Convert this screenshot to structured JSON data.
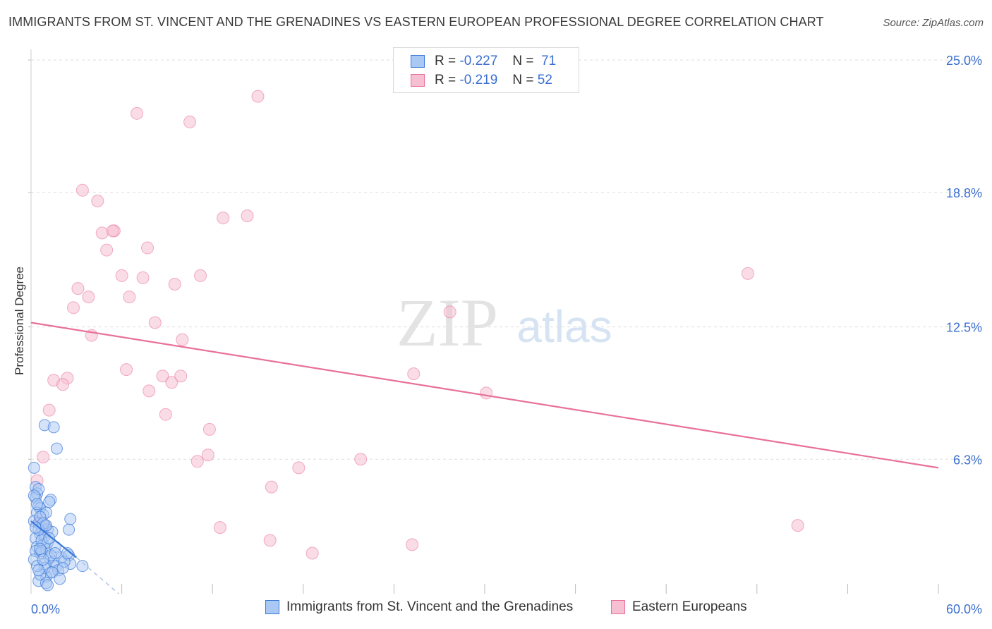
{
  "header": {
    "title": "IMMIGRANTS FROM ST. VINCENT AND THE GRENADINES VS EASTERN EUROPEAN PROFESSIONAL DEGREE CORRELATION CHART",
    "source": "Source: ZipAtlas.com"
  },
  "watermark": {
    "zip": "ZIP",
    "atlas": "atlas"
  },
  "stats": {
    "blue": {
      "r_label": "R =",
      "r_value": "-0.227",
      "n_label": "N =",
      "n_value": "71"
    },
    "pink": {
      "r_label": "R =",
      "r_value": "-0.219",
      "n_label": "N =",
      "n_value": "52"
    }
  },
  "colors": {
    "blue": "#3b78d8",
    "blue_fill": "#a9c8f3",
    "pink": "#e8709a",
    "pink_fill": "#f6bfd2",
    "accent_text": "#3b6fd1",
    "grid": "#dddddd"
  },
  "chart_data": {
    "type": "scatter",
    "title": "IMMIGRANTS FROM ST. VINCENT AND THE GRENADINES VS EASTERN EUROPEAN PROFESSIONAL DEGREE CORRELATION CHART",
    "xlabel": "",
    "ylabel": "Professional Degree",
    "xlim": [
      0,
      60
    ],
    "ylim": [
      0,
      25.5
    ],
    "x_tick_labels": [
      "0.0%",
      "60.0%"
    ],
    "y_ticks": [
      6.3,
      12.5,
      18.8,
      25.0
    ],
    "y_tick_labels": [
      "6.3%",
      "12.5%",
      "18.8%",
      "25.0%"
    ],
    "legend_position": "bottom-center",
    "series": [
      {
        "name": "Immigrants from St. Vincent and the Grenadines",
        "color": "#3b78d8",
        "r": -0.227,
        "n": 71,
        "trend": {
          "x": [
            0.0,
            3.0
          ],
          "y": [
            3.4,
            1.7
          ]
        },
        "trend_extension": {
          "x": [
            3.0,
            5.8
          ],
          "y": [
            1.7,
            0.0
          ]
        },
        "points": [
          [
            0.2,
            5.9
          ],
          [
            0.3,
            5.0
          ],
          [
            0.4,
            4.7
          ],
          [
            0.3,
            4.5
          ],
          [
            0.5,
            4.1
          ],
          [
            0.6,
            4.0
          ],
          [
            0.4,
            3.8
          ],
          [
            0.8,
            3.7
          ],
          [
            0.2,
            3.4
          ],
          [
            0.5,
            3.3
          ],
          [
            0.7,
            3.1
          ],
          [
            0.9,
            3.2
          ],
          [
            1.1,
            3.0
          ],
          [
            0.6,
            2.8
          ],
          [
            0.3,
            2.6
          ],
          [
            0.4,
            2.2
          ],
          [
            0.8,
            2.3
          ],
          [
            1.0,
            2.1
          ],
          [
            0.3,
            2.0
          ],
          [
            0.6,
            1.9
          ],
          [
            1.2,
            1.7
          ],
          [
            1.5,
            1.5
          ],
          [
            0.9,
            1.4
          ],
          [
            1.7,
            1.3
          ],
          [
            2.0,
            1.7
          ],
          [
            2.5,
            1.8
          ],
          [
            1.3,
            1.0
          ],
          [
            1.0,
            0.8
          ],
          [
            0.5,
            0.6
          ],
          [
            1.0,
            0.5
          ],
          [
            1.8,
            1.1
          ],
          [
            2.6,
            1.4
          ],
          [
            3.4,
            1.3
          ],
          [
            0.9,
            7.9
          ],
          [
            1.5,
            7.8
          ],
          [
            1.7,
            6.8
          ],
          [
            2.5,
            3.0
          ],
          [
            2.6,
            3.5
          ],
          [
            1.3,
            4.4
          ],
          [
            1.2,
            4.3
          ],
          [
            0.5,
            4.9
          ],
          [
            1.0,
            3.8
          ],
          [
            0.9,
            2.7
          ],
          [
            1.4,
            2.9
          ],
          [
            0.2,
            4.6
          ],
          [
            0.4,
            4.2
          ],
          [
            0.6,
            3.6
          ],
          [
            0.8,
            3.3
          ],
          [
            0.5,
            3.0
          ],
          [
            0.7,
            2.5
          ],
          [
            1.1,
            2.4
          ],
          [
            1.6,
            2.2
          ],
          [
            0.7,
            2.0
          ],
          [
            1.3,
            1.8
          ],
          [
            0.2,
            1.6
          ],
          [
            0.9,
            1.2
          ],
          [
            1.4,
            1.0
          ],
          [
            2.2,
            1.5
          ],
          [
            0.6,
            0.9
          ],
          [
            1.9,
            0.7
          ],
          [
            0.3,
            3.1
          ],
          [
            0.6,
            2.1
          ],
          [
            1.0,
            3.2
          ],
          [
            0.4,
            1.3
          ],
          [
            0.8,
            1.6
          ],
          [
            1.2,
            2.6
          ],
          [
            1.6,
            1.9
          ],
          [
            2.1,
            1.2
          ],
          [
            0.5,
            1.1
          ],
          [
            1.1,
            0.4
          ],
          [
            2.4,
            1.9
          ]
        ]
      },
      {
        "name": "Eastern Europeans",
        "color": "#e8709a",
        "r": -0.219,
        "n": 52,
        "trend": {
          "x": [
            0.0,
            60.0
          ],
          "y": [
            12.7,
            5.9
          ]
        },
        "points": [
          [
            15.0,
            23.3
          ],
          [
            7.0,
            22.5
          ],
          [
            10.5,
            22.1
          ],
          [
            3.4,
            18.9
          ],
          [
            4.4,
            18.4
          ],
          [
            12.7,
            17.6
          ],
          [
            14.3,
            17.7
          ],
          [
            4.7,
            16.9
          ],
          [
            5.5,
            17.0
          ],
          [
            5.4,
            17.0
          ],
          [
            5.0,
            16.1
          ],
          [
            7.7,
            16.2
          ],
          [
            6.0,
            14.9
          ],
          [
            7.4,
            14.8
          ],
          [
            11.2,
            14.9
          ],
          [
            9.5,
            14.5
          ],
          [
            3.1,
            14.3
          ],
          [
            3.8,
            13.9
          ],
          [
            6.5,
            13.9
          ],
          [
            2.8,
            13.4
          ],
          [
            8.2,
            12.7
          ],
          [
            27.7,
            13.2
          ],
          [
            47.4,
            15.0
          ],
          [
            4.0,
            12.1
          ],
          [
            10.0,
            11.9
          ],
          [
            6.3,
            10.5
          ],
          [
            8.7,
            10.2
          ],
          [
            9.3,
            9.9
          ],
          [
            9.9,
            10.2
          ],
          [
            25.3,
            10.3
          ],
          [
            1.5,
            10.0
          ],
          [
            2.4,
            10.1
          ],
          [
            2.1,
            9.8
          ],
          [
            7.8,
            9.5
          ],
          [
            30.1,
            9.4
          ],
          [
            1.2,
            8.6
          ],
          [
            8.9,
            8.4
          ],
          [
            11.8,
            7.7
          ],
          [
            11.0,
            6.2
          ],
          [
            11.7,
            6.5
          ],
          [
            17.7,
            5.9
          ],
          [
            21.8,
            6.3
          ],
          [
            0.8,
            6.4
          ],
          [
            0.4,
            5.3
          ],
          [
            15.9,
            5.0
          ],
          [
            12.5,
            3.1
          ],
          [
            15.8,
            2.5
          ],
          [
            18.6,
            1.9
          ],
          [
            25.2,
            2.3
          ],
          [
            50.7,
            3.2
          ],
          [
            0.6,
            3.5
          ],
          [
            0.9,
            3.2
          ]
        ]
      }
    ]
  },
  "legend": {
    "blue_label": "Immigrants from St. Vincent and the Grenadines",
    "pink_label": "Eastern Europeans"
  }
}
